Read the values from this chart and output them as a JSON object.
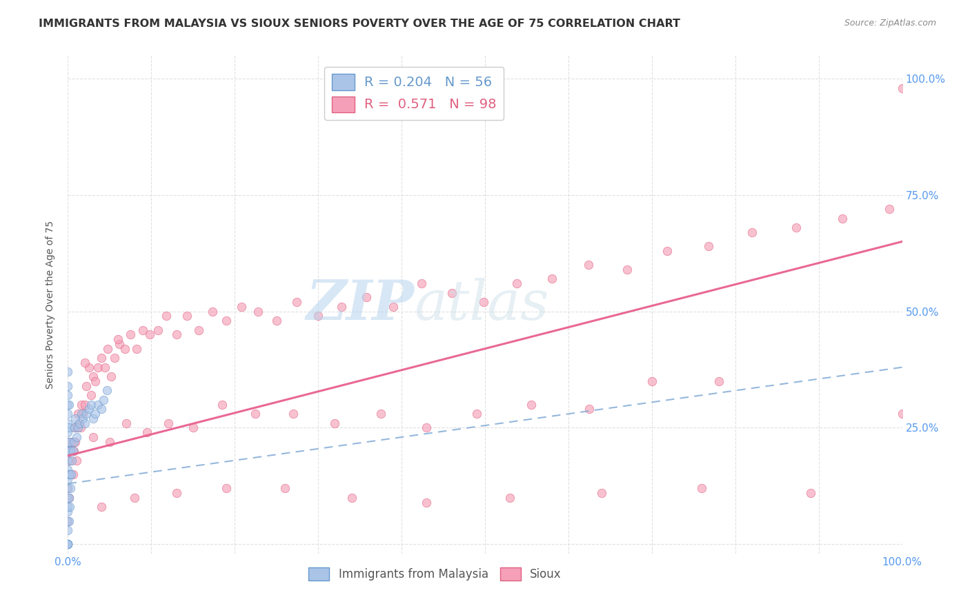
{
  "title": "IMMIGRANTS FROM MALAYSIA VS SIOUX SENIORS POVERTY OVER THE AGE OF 75 CORRELATION CHART",
  "source": "Source: ZipAtlas.com",
  "ylabel": "Seniors Poverty Over the Age of 75",
  "watermark_zip": "ZIP",
  "watermark_atlas": "atlas",
  "legend_r1": "R = 0.204",
  "legend_n1": "N = 56",
  "legend_r2": "R =  0.571",
  "legend_n2": "N = 98",
  "label1": "Immigrants from Malaysia",
  "label2": "Sioux",
  "color1": "#aac4e8",
  "color2": "#f5a0b8",
  "edge1": "#6699cc",
  "edge2": "#e06080",
  "line1_color": "#8ab0d8",
  "line2_color": "#e86090",
  "grid_color": "#e0e0e0",
  "background_color": "#ffffff",
  "tick_color": "#5599ee",
  "title_fontsize": 11.5,
  "axis_label_fontsize": 10,
  "tick_fontsize": 11,
  "source_fontsize": 9,
  "marker_size": 80,
  "alpha": 0.65,
  "xlim": [
    0.0,
    1.0
  ],
  "ylim": [
    -0.02,
    1.05
  ],
  "malaysia_x": [
    0.0,
    0.0,
    0.0,
    0.0,
    0.0,
    0.0,
    0.0,
    0.0,
    0.0,
    0.0,
    0.0,
    0.0,
    0.0,
    0.0,
    0.0,
    0.0,
    0.0,
    0.0,
    0.0,
    0.0,
    0.0,
    0.0,
    0.0,
    0.0,
    0.001,
    0.001,
    0.001,
    0.001,
    0.001,
    0.001,
    0.002,
    0.002,
    0.002,
    0.003,
    0.003,
    0.004,
    0.005,
    0.006,
    0.007,
    0.008,
    0.009,
    0.01,
    0.012,
    0.014,
    0.016,
    0.018,
    0.02,
    0.022,
    0.025,
    0.028,
    0.03,
    0.033,
    0.036,
    0.04,
    0.043,
    0.047
  ],
  "malaysia_y": [
    0.0,
    0.0,
    0.0,
    0.0,
    0.0,
    0.0,
    0.03,
    0.05,
    0.07,
    0.08,
    0.1,
    0.12,
    0.14,
    0.16,
    0.18,
    0.2,
    0.22,
    0.24,
    0.26,
    0.28,
    0.3,
    0.32,
    0.34,
    0.37,
    0.05,
    0.1,
    0.15,
    0.2,
    0.25,
    0.3,
    0.08,
    0.15,
    0.22,
    0.12,
    0.2,
    0.15,
    0.18,
    0.2,
    0.22,
    0.25,
    0.27,
    0.23,
    0.25,
    0.26,
    0.28,
    0.27,
    0.26,
    0.28,
    0.29,
    0.3,
    0.27,
    0.28,
    0.3,
    0.29,
    0.31,
    0.33
  ],
  "sioux_x": [
    0.0,
    0.0,
    0.0,
    0.001,
    0.001,
    0.002,
    0.003,
    0.004,
    0.005,
    0.006,
    0.007,
    0.008,
    0.009,
    0.01,
    0.011,
    0.012,
    0.014,
    0.016,
    0.018,
    0.02,
    0.022,
    0.025,
    0.028,
    0.03,
    0.033,
    0.036,
    0.04,
    0.044,
    0.048,
    0.052,
    0.056,
    0.062,
    0.068,
    0.075,
    0.082,
    0.09,
    0.098,
    0.108,
    0.118,
    0.13,
    0.143,
    0.157,
    0.173,
    0.19,
    0.208,
    0.228,
    0.25,
    0.274,
    0.3,
    0.328,
    0.358,
    0.39,
    0.424,
    0.46,
    0.498,
    0.538,
    0.58,
    0.624,
    0.67,
    0.718,
    0.768,
    0.82,
    0.873,
    0.928,
    0.985,
    1.0,
    0.015,
    0.03,
    0.05,
    0.07,
    0.095,
    0.12,
    0.15,
    0.185,
    0.225,
    0.27,
    0.32,
    0.375,
    0.43,
    0.49,
    0.555,
    0.625,
    0.7,
    0.78,
    0.04,
    0.08,
    0.13,
    0.19,
    0.26,
    0.34,
    0.43,
    0.53,
    0.64,
    0.76,
    0.89,
    1.0,
    0.02,
    0.06
  ],
  "sioux_y": [
    0.05,
    0.12,
    0.2,
    0.1,
    0.22,
    0.15,
    0.18,
    0.2,
    0.22,
    0.15,
    0.2,
    0.25,
    0.22,
    0.18,
    0.25,
    0.28,
    0.26,
    0.3,
    0.28,
    0.3,
    0.34,
    0.38,
    0.32,
    0.36,
    0.35,
    0.38,
    0.4,
    0.38,
    0.42,
    0.36,
    0.4,
    0.43,
    0.42,
    0.45,
    0.42,
    0.46,
    0.45,
    0.46,
    0.49,
    0.45,
    0.49,
    0.46,
    0.5,
    0.48,
    0.51,
    0.5,
    0.48,
    0.52,
    0.49,
    0.51,
    0.53,
    0.51,
    0.56,
    0.54,
    0.52,
    0.56,
    0.57,
    0.6,
    0.59,
    0.63,
    0.64,
    0.67,
    0.68,
    0.7,
    0.72,
    0.98,
    0.25,
    0.23,
    0.22,
    0.26,
    0.24,
    0.26,
    0.25,
    0.3,
    0.28,
    0.28,
    0.26,
    0.28,
    0.25,
    0.28,
    0.3,
    0.29,
    0.35,
    0.35,
    0.08,
    0.1,
    0.11,
    0.12,
    0.12,
    0.1,
    0.09,
    0.1,
    0.11,
    0.12,
    0.11,
    0.28,
    0.39,
    0.44
  ],
  "malaysia_trend_x": [
    0.0,
    1.0
  ],
  "malaysia_trend_y": [
    0.13,
    0.38
  ],
  "sioux_trend_x": [
    0.0,
    1.0
  ],
  "sioux_trend_y": [
    0.19,
    0.65
  ]
}
